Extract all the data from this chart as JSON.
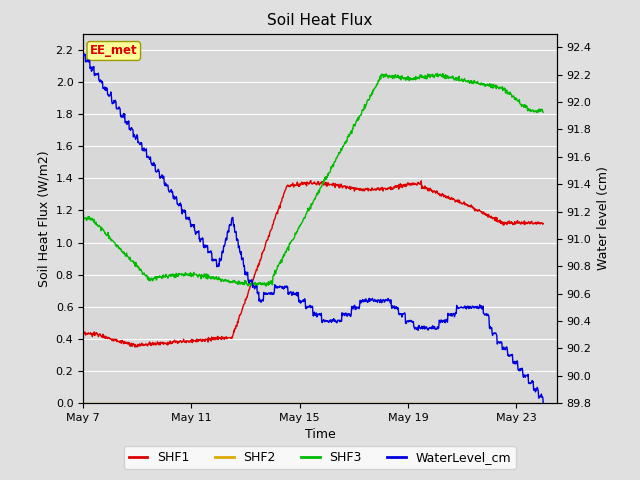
{
  "title": "Soil Heat Flux",
  "xlabel": "Time",
  "ylabel_left": "Soil Heat Flux (W/m2)",
  "ylabel_right": "Water level (cm)",
  "ylim_left": [
    0.0,
    2.3
  ],
  "ylim_right": [
    89.8,
    92.5
  ],
  "yticks_left": [
    0.0,
    0.2,
    0.4,
    0.6,
    0.8,
    1.0,
    1.2,
    1.4,
    1.6,
    1.8,
    2.0,
    2.2
  ],
  "yticks_right": [
    89.8,
    90.0,
    90.2,
    90.4,
    90.6,
    90.8,
    91.0,
    91.2,
    91.4,
    91.6,
    91.8,
    92.0,
    92.2,
    92.4
  ],
  "xtick_labels": [
    "May 7",
    "May 11",
    "May 15",
    "May 19",
    "May 23"
  ],
  "xtick_positions": [
    0,
    4,
    8,
    12,
    16
  ],
  "xlim": [
    0,
    17.5
  ],
  "bg_color": "#e0e0e0",
  "plot_bg_color": "#d8d8d8",
  "grid_color": "#ffffff",
  "shf1_color": "#dd0000",
  "shf2_color": "#ddaa00",
  "shf3_color": "#00bb00",
  "water_color": "#0000dd",
  "annotation_text": "EE_met",
  "annotation_bg": "#ffff99",
  "annotation_border": "#999900",
  "legend_labels": [
    "SHF1",
    "SHF2",
    "SHF3",
    "WaterLevel_cm"
  ],
  "figsize": [
    6.4,
    4.8
  ],
  "dpi": 100
}
